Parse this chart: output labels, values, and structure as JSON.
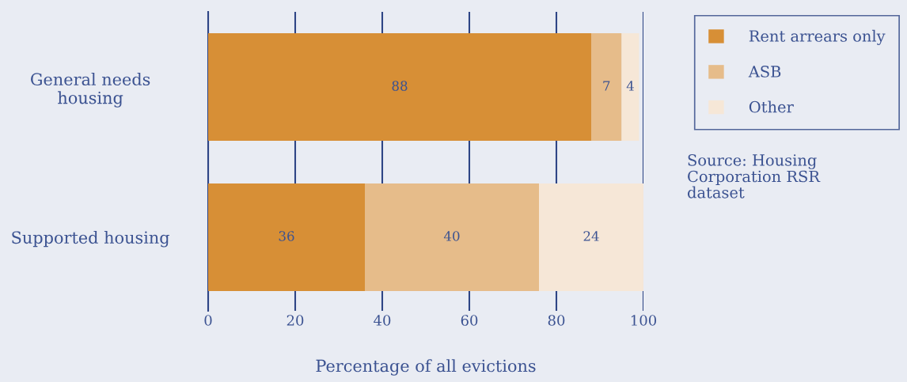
{
  "chart_data": {
    "type": "bar",
    "orientation": "horizontal",
    "stacked": true,
    "categories": [
      "General needs\nhousing",
      "Supported housing"
    ],
    "series": [
      {
        "name": "Rent arrears only",
        "color": "#d78f36",
        "values": [
          88,
          36
        ]
      },
      {
        "name": "ASB",
        "color": "#e6bc8a",
        "values": [
          7,
          40
        ]
      },
      {
        "name": "Other",
        "color": "#f6e7d7",
        "values": [
          4,
          24
        ]
      }
    ],
    "xlabel": "Percentage of all evictions",
    "xlim": [
      0,
      100
    ],
    "xticks": [
      0,
      20,
      40,
      60,
      80,
      100
    ],
    "grid": "x",
    "legend": "right",
    "data_labels": true,
    "annotations": [
      "Source: Housing\nCorporation RSR\ndataset"
    ]
  }
}
